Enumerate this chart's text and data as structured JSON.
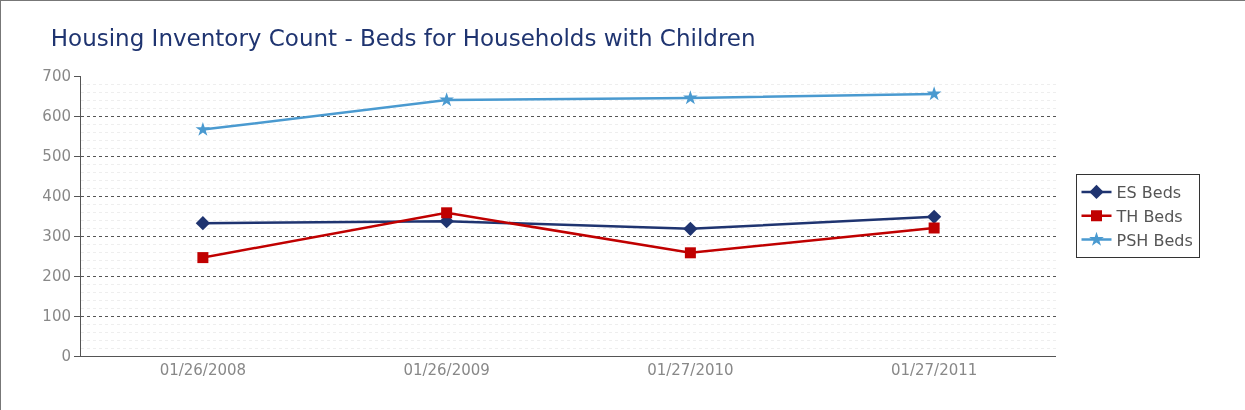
{
  "chart_data": {
    "type": "line",
    "title": "Housing Inventory Count - Beds for Households with Children",
    "categories": [
      "01/26/2008",
      "01/26/2009",
      "01/27/2010",
      "01/27/2011"
    ],
    "series": [
      {
        "name": "ES Beds",
        "color": "#1f3470",
        "marker": "diamond",
        "values": [
          332,
          337,
          318,
          348
        ]
      },
      {
        "name": "TH Beds",
        "color": "#c00000",
        "marker": "square",
        "values": [
          246,
          358,
          258,
          320
        ]
      },
      {
        "name": "PSH Beds",
        "color": "#4a9ad0",
        "marker": "star",
        "values": [
          566,
          640,
          645,
          655
        ]
      }
    ],
    "ylim": [
      0,
      700
    ],
    "yticks": [
      0,
      100,
      200,
      300,
      400,
      500,
      600,
      700
    ],
    "grid": "y",
    "legend": "right",
    "line_style": "solid"
  }
}
